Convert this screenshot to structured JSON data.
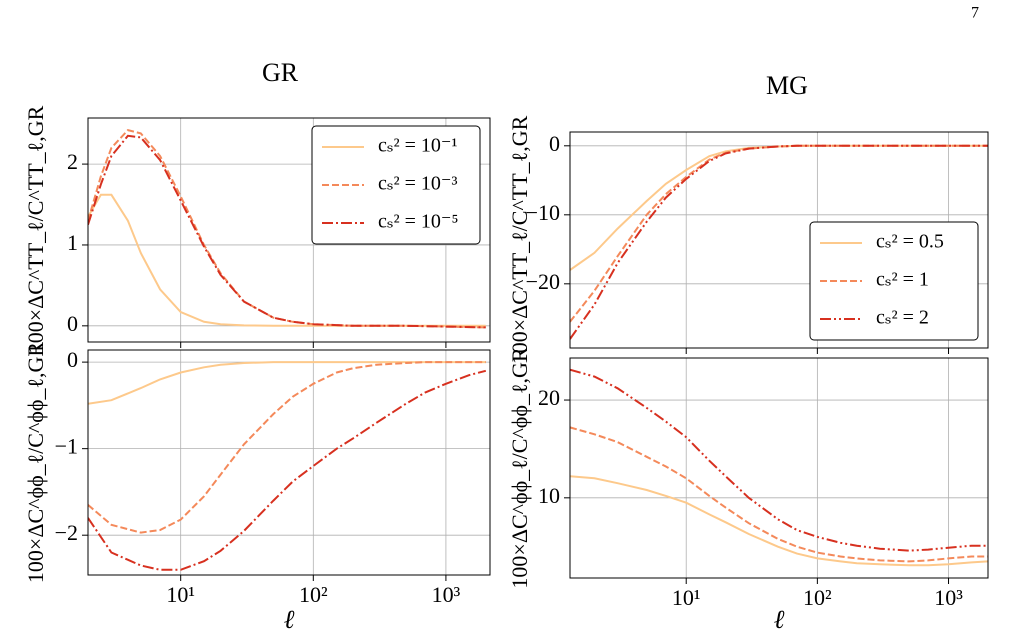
{
  "page_number": "7",
  "chart_data": [
    {
      "type": "line",
      "title": "GR",
      "ylabel": "100×ΔC^TT_ℓ/C^TT_ℓ,GR",
      "xscale": "log",
      "grid": true,
      "legend": "upper right",
      "show_xticklabels": false,
      "x": [
        2,
        2.5,
        3,
        4,
        5,
        7,
        10,
        15,
        20,
        30,
        50,
        70,
        100,
        200,
        500,
        1000,
        2000
      ],
      "xlim": [
        2,
        2150
      ],
      "ylim": [
        -0.2,
        2.57
      ],
      "xticks": [
        10,
        100,
        1000
      ],
      "yticks": [
        0,
        1,
        2
      ],
      "series": [
        {
          "name": "cₛ² = 10⁻¹",
          "color": "#fdc98b",
          "linestyle": "solid",
          "values": [
            1.35,
            1.62,
            1.62,
            1.3,
            0.9,
            0.45,
            0.17,
            0.05,
            0.02,
            0.005,
            0,
            0,
            0,
            0,
            0,
            0,
            0
          ]
        },
        {
          "name": "cₛ² = 10⁻³",
          "color": "#f4895a",
          "linestyle": "dashed",
          "values": [
            1.3,
            1.85,
            2.2,
            2.42,
            2.38,
            2.1,
            1.6,
            1.0,
            0.65,
            0.3,
            0.1,
            0.05,
            0.02,
            0,
            0,
            -0.01,
            -0.02
          ]
        },
        {
          "name": "cₛ² = 10⁻⁵",
          "color": "#d7301f",
          "linestyle": "dashdot",
          "values": [
            1.25,
            1.75,
            2.1,
            2.35,
            2.33,
            2.05,
            1.55,
            0.98,
            0.63,
            0.3,
            0.1,
            0.05,
            0.02,
            0,
            0,
            -0.01,
            -0.02
          ]
        }
      ]
    },
    {
      "type": "line",
      "ylabel": "100×ΔC^ϕϕ_ℓ/C^ϕϕ_ℓ,GR",
      "xlabel": "ℓ",
      "xscale": "log",
      "grid": true,
      "show_xticklabels": true,
      "x": [
        2,
        3,
        5,
        7,
        10,
        15,
        20,
        30,
        50,
        70,
        100,
        150,
        200,
        300,
        500,
        700,
        1000,
        1500,
        2000
      ],
      "xlim": [
        2,
        2150
      ],
      "ylim": [
        -2.46,
        0.14
      ],
      "xticks": [
        {
          "value": 10,
          "label": "10¹"
        },
        {
          "value": 100,
          "label": "10²"
        },
        {
          "value": 1000,
          "label": "10³"
        }
      ],
      "yticks": [
        0,
        {
          "value": -1,
          "label": "−1"
        },
        {
          "value": -2,
          "label": "−2"
        }
      ],
      "series": [
        {
          "name": "cₛ² = 10⁻¹",
          "color": "#fdc98b",
          "linestyle": "solid",
          "values": [
            -0.48,
            -0.44,
            -0.3,
            -0.2,
            -0.12,
            -0.06,
            -0.03,
            -0.01,
            0,
            0,
            0,
            0,
            0,
            0,
            0,
            0,
            0,
            0,
            0
          ]
        },
        {
          "name": "cₛ² = 10⁻³",
          "color": "#f4895a",
          "linestyle": "dashed",
          "values": [
            -1.65,
            -1.88,
            -1.97,
            -1.94,
            -1.82,
            -1.55,
            -1.3,
            -0.95,
            -0.6,
            -0.4,
            -0.25,
            -0.12,
            -0.07,
            -0.03,
            -0.01,
            0,
            0,
            0,
            0
          ]
        },
        {
          "name": "cₛ² = 10⁻⁵",
          "color": "#d7301f",
          "linestyle": "dashdot",
          "values": [
            -1.8,
            -2.2,
            -2.35,
            -2.4,
            -2.4,
            -2.3,
            -2.18,
            -1.95,
            -1.6,
            -1.38,
            -1.2,
            -1.0,
            -0.88,
            -0.7,
            -0.48,
            -0.35,
            -0.25,
            -0.15,
            -0.1
          ]
        }
      ]
    },
    {
      "type": "line",
      "title": "MG",
      "ylabel": "100×ΔC^TT_ℓ/C^TT_ℓ,GR",
      "xscale": "log",
      "grid": true,
      "legend": "lower right",
      "show_xticklabels": false,
      "x": [
        1.3,
        2,
        3,
        5,
        7,
        10,
        15,
        20,
        30,
        50,
        70,
        100,
        200,
        500,
        1000,
        2000
      ],
      "xlim": [
        1.3,
        2000
      ],
      "ylim": [
        -29.3,
        2
      ],
      "xticks": [
        10,
        100,
        1000
      ],
      "yticks": [
        0,
        {
          "value": -10,
          "label": "−10"
        },
        {
          "value": -20,
          "label": "−20"
        }
      ],
      "series": [
        {
          "name": "cₛ² = 0.5",
          "color": "#fdc98b",
          "linestyle": "solid",
          "values": [
            -18,
            -15.5,
            -12,
            -8,
            -5.5,
            -3.5,
            -1.5,
            -0.8,
            -0.3,
            -0.1,
            0,
            0,
            0,
            0,
            0,
            0
          ]
        },
        {
          "name": "cₛ² = 1",
          "color": "#f4895a",
          "linestyle": "dashed",
          "values": [
            -25.5,
            -21,
            -16,
            -10,
            -7,
            -4.5,
            -2,
            -1,
            -0.4,
            -0.1,
            0,
            0,
            0,
            0,
            0,
            0
          ]
        },
        {
          "name": "cₛ² = 2",
          "color": "#d7301f",
          "linestyle": "dashdotdot",
          "values": [
            -28,
            -23,
            -17,
            -11,
            -7.5,
            -4.8,
            -2.2,
            -1.1,
            -0.4,
            -0.1,
            0,
            0,
            0,
            0,
            0,
            0
          ]
        }
      ]
    },
    {
      "type": "line",
      "ylabel": "100×ΔC^ϕϕ_ℓ/C^ϕϕ_ℓ,GR",
      "xlabel": "ℓ",
      "xscale": "log",
      "grid": true,
      "show_xticklabels": true,
      "x": [
        1.3,
        2,
        3,
        5,
        7,
        10,
        15,
        20,
        30,
        50,
        70,
        100,
        150,
        200,
        300,
        500,
        700,
        1000,
        1500,
        2000
      ],
      "xlim": [
        1.3,
        2000
      ],
      "ylim": [
        1.8,
        24.3
      ],
      "xticks": [
        {
          "value": 10,
          "label": "10¹"
        },
        {
          "value": 100,
          "label": "10²"
        },
        {
          "value": 1000,
          "label": "10³"
        }
      ],
      "yticks": [
        10,
        20
      ],
      "series": [
        {
          "name": "cₛ² = 0.5",
          "color": "#fdc98b",
          "linestyle": "solid",
          "values": [
            12.2,
            12,
            11.5,
            10.8,
            10.2,
            9.5,
            8.3,
            7.5,
            6.3,
            5,
            4.3,
            3.8,
            3.5,
            3.3,
            3.2,
            3.1,
            3.1,
            3.2,
            3.4,
            3.5
          ]
        },
        {
          "name": "cₛ² = 1",
          "color": "#f4895a",
          "linestyle": "dashed",
          "values": [
            17.2,
            16.5,
            15.7,
            14.2,
            13.2,
            12,
            10.2,
            9,
            7.4,
            5.8,
            5,
            4.4,
            4,
            3.8,
            3.6,
            3.5,
            3.6,
            3.8,
            4,
            4
          ]
        },
        {
          "name": "cₛ² = 2",
          "color": "#d7301f",
          "linestyle": "dashdotdot",
          "values": [
            23.1,
            22.4,
            21.2,
            19.2,
            17.8,
            16.2,
            13.8,
            12.2,
            10,
            7.8,
            6.7,
            6,
            5.4,
            5.1,
            4.8,
            4.6,
            4.7,
            4.9,
            5.1,
            5.1
          ]
        }
      ]
    }
  ]
}
